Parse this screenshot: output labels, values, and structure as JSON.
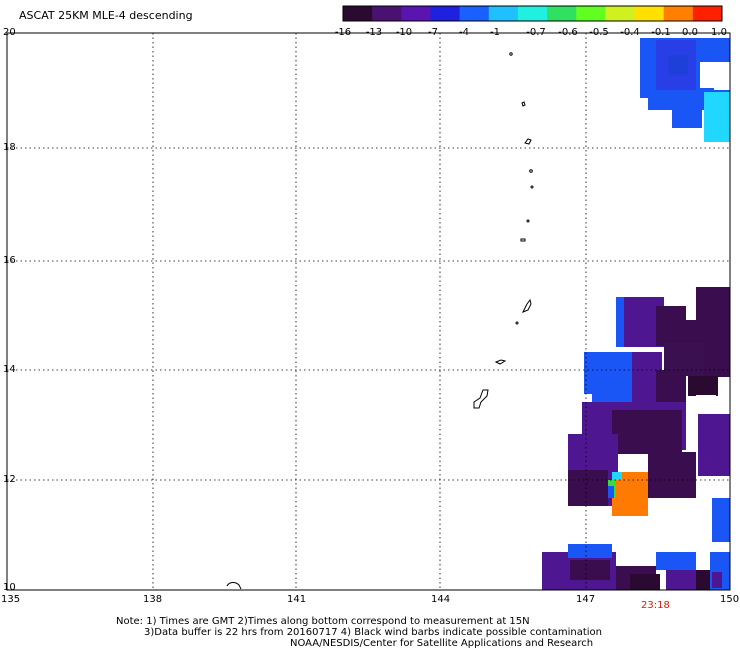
{
  "title": "ASCAT 25KM MLE-4 descending",
  "colorbar": {
    "labels": [
      "-16",
      "-13",
      "-10",
      "-7",
      "-4",
      "-1",
      "-0.7",
      "-0.6",
      "-0.5",
      "-0.4",
      "-0.1",
      "0.0",
      "1.0"
    ],
    "colors": [
      "#2a0a30",
      "#4a1270",
      "#5a14b0",
      "#2020e0",
      "#1a60ff",
      "#20c0ff",
      "#20f0e0",
      "#30e060",
      "#60ff20",
      "#d0f020",
      "#ffe000",
      "#ff8000",
      "#ff2000"
    ]
  },
  "axes": {
    "x_ticks": [
      "135",
      "138",
      "141",
      "144",
      "147",
      "150"
    ],
    "y_ticks": [
      "20",
      "18",
      "16",
      "14",
      "12",
      "10"
    ]
  },
  "time_label": "23:18",
  "notes": [
    "Note: 1) Times are GMT 2)Times along bottom correspond to measurement at 15N",
    "3)Data buffer is 22 hrs from 20160717 4) Black wind barbs indicate possible contamination",
    "NOAA/NESDIS/Center for Satellite Applications and Research"
  ],
  "colors": {
    "deep_purple": "#3a0e4e",
    "purple": "#4e1690",
    "blue": "#1a56f5",
    "cyan": "#20d8ff",
    "orange": "#ff7a00",
    "green": "#30e040"
  }
}
